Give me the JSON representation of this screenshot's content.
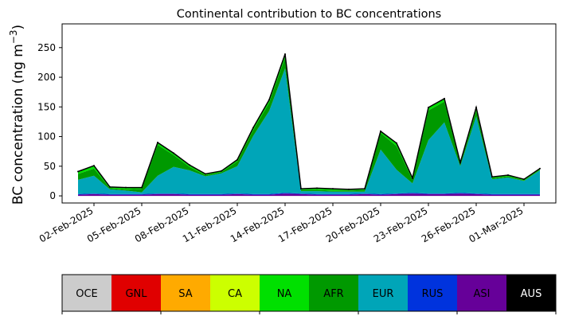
{
  "chart_data": {
    "type": "area",
    "title": "Continental contribution to BC concentrations",
    "ylabel": "BC concentration (ng m$^{-3}$)",
    "ylabel_display": {
      "main": "BC concentration (ng m",
      "sup": "−3",
      "close": ")"
    },
    "xlim": [
      "2025-01-31",
      "2025-03-03"
    ],
    "ylim": [
      -12,
      290
    ],
    "yticks": [
      0,
      50,
      100,
      150,
      200,
      250
    ],
    "xticks": [
      "02-Feb-2025",
      "05-Feb-2025",
      "08-Feb-2025",
      "11-Feb-2025",
      "14-Feb-2025",
      "17-Feb-2025",
      "20-Feb-2025",
      "23-Feb-2025",
      "26-Feb-2025",
      "01-Mar-2025"
    ],
    "stack_order": [
      "AUS",
      "ASI",
      "RUS",
      "EUR",
      "AFR",
      "NA",
      "CA",
      "SA",
      "GNL",
      "OCE"
    ],
    "x": [
      "2025-02-01",
      "2025-02-02",
      "2025-02-03",
      "2025-02-04",
      "2025-02-05",
      "2025-02-06",
      "2025-02-07",
      "2025-02-08",
      "2025-02-09",
      "2025-02-10",
      "2025-02-11",
      "2025-02-12",
      "2025-02-13",
      "2025-02-14",
      "2025-02-15",
      "2025-02-16",
      "2025-02-17",
      "2025-02-18",
      "2025-02-19",
      "2025-02-20",
      "2025-02-21",
      "2025-02-22",
      "2025-02-23",
      "2025-02-24",
      "2025-02-25",
      "2025-02-26",
      "2025-02-27",
      "2025-02-28",
      "2025-03-01",
      "2025-03-02"
    ],
    "series": [
      {
        "name": "AUS",
        "values": [
          0,
          0,
          0,
          0,
          0,
          0,
          0,
          0,
          0,
          0,
          0,
          0,
          0,
          0,
          0,
          0,
          0,
          0,
          0,
          0,
          0,
          0,
          0,
          0,
          0,
          0,
          0,
          0,
          0,
          0
        ]
      },
      {
        "name": "ASI",
        "values": [
          2,
          3,
          2,
          2,
          2,
          3,
          3,
          2,
          2,
          2,
          3,
          2,
          2,
          4,
          3,
          2,
          2,
          2,
          3,
          2,
          3,
          4,
          3,
          3,
          4,
          3,
          2,
          2,
          2,
          2
        ]
      },
      {
        "name": "RUS",
        "values": [
          1,
          1,
          1,
          1,
          1,
          1,
          1,
          1,
          1,
          1,
          1,
          1,
          1,
          1,
          1,
          1,
          1,
          1,
          1,
          1,
          1,
          1,
          1,
          1,
          1,
          1,
          1,
          1,
          1,
          1
        ]
      },
      {
        "name": "EUR",
        "values": [
          24,
          30,
          8,
          6,
          3,
          30,
          45,
          40,
          30,
          35,
          46,
          98,
          140,
          210,
          4,
          5,
          4,
          4,
          3,
          75,
          40,
          16,
          90,
          120,
          45,
          130,
          25,
          28,
          22,
          40
        ]
      },
      {
        "name": "AFR",
        "values": [
          10,
          12,
          2,
          2,
          6,
          52,
          20,
          6,
          2,
          2,
          8,
          10,
          14,
          18,
          2,
          2,
          2,
          2,
          3,
          28,
          40,
          6,
          50,
          35,
          3,
          10,
          2,
          2,
          1,
          1
        ]
      },
      {
        "name": "NA",
        "values": [
          4,
          5,
          2,
          3,
          2,
          4,
          3,
          3,
          2,
          2,
          3,
          4,
          5,
          6,
          2,
          3,
          3,
          2,
          2,
          3,
          5,
          3,
          5,
          5,
          3,
          5,
          2,
          2,
          2,
          2
        ]
      },
      {
        "name": "CA",
        "values": [
          0,
          0,
          0,
          0,
          0,
          0,
          0,
          0,
          0,
          0,
          0,
          0,
          0,
          0,
          0,
          0,
          0,
          0,
          0,
          0,
          0,
          0,
          0,
          0,
          0,
          0,
          0,
          0,
          0,
          0
        ]
      },
      {
        "name": "SA",
        "values": [
          0,
          0,
          0,
          0,
          0,
          0,
          0,
          0,
          0,
          0,
          0,
          0,
          0,
          0,
          0,
          0,
          0,
          0,
          0,
          0,
          0,
          0,
          0,
          0,
          0,
          0,
          0,
          0,
          0,
          0
        ]
      },
      {
        "name": "GNL",
        "values": [
          0,
          0,
          0,
          0,
          0,
          0,
          0,
          0,
          0,
          0,
          0,
          0,
          0,
          0,
          0,
          0,
          0,
          0,
          0,
          0,
          0,
          0,
          0,
          0,
          0,
          0,
          0,
          0,
          0,
          0
        ]
      },
      {
        "name": "OCE",
        "values": [
          0,
          0,
          0,
          0,
          0,
          0,
          0,
          0,
          0,
          0,
          0,
          0,
          0,
          0,
          0,
          0,
          0,
          0,
          0,
          0,
          0,
          0,
          0,
          0,
          0,
          0,
          0,
          0,
          0,
          0
        ]
      }
    ],
    "total_values": [
      41,
      51,
      15,
      14,
      14,
      90,
      72,
      52,
      37,
      42,
      61,
      115,
      162,
      239,
      12,
      13,
      12,
      11,
      12,
      109,
      89,
      30,
      149,
      164,
      56,
      149,
      32,
      35,
      28,
      46
    ],
    "total_color": "#000000",
    "legend": [
      {
        "name": "OCE",
        "color": "#cccccc",
        "text_color": "#000000"
      },
      {
        "name": "GNL",
        "color": "#e00000",
        "text_color": "#000000"
      },
      {
        "name": "SA",
        "color": "#ffaa00",
        "text_color": "#000000"
      },
      {
        "name": "CA",
        "color": "#ccff00",
        "text_color": "#000000"
      },
      {
        "name": "NA",
        "color": "#00e000",
        "text_color": "#000000"
      },
      {
        "name": "AFR",
        "color": "#009900",
        "text_color": "#000000"
      },
      {
        "name": "EUR",
        "color": "#00a5b8",
        "text_color": "#000000"
      },
      {
        "name": "RUS",
        "color": "#0033dd",
        "text_color": "#000000"
      },
      {
        "name": "ASI",
        "color": "#660099",
        "text_color": "#000000"
      },
      {
        "name": "AUS",
        "color": "#000000",
        "text_color": "#ffffff"
      }
    ],
    "grid": false,
    "legend_placement": "bottom"
  }
}
